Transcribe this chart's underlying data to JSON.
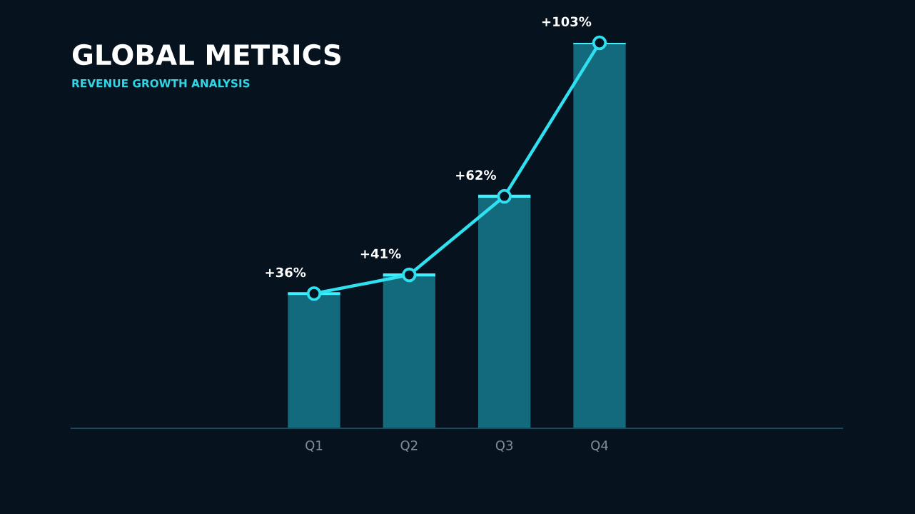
{
  "chart_data": {
    "type": "bar",
    "title": "GLOBAL METRICS",
    "subtitle": "REVENUE GROWTH ANALYSIS",
    "categories": [
      "Q1",
      "Q2",
      "Q3",
      "Q4"
    ],
    "tick_labels": "x",
    "series": [
      {
        "color": "#136a7c",
        "values": [
          36,
          41,
          62,
          103
        ]
      },
      {
        "type": "line",
        "color": "#2fe0f0",
        "values": [
          36,
          41,
          62,
          103
        ],
        "value_labels": [
          "+36%",
          "+41%",
          "+62%",
          "+103%"
        ],
        "marker": "circle"
      }
    ]
  }
}
